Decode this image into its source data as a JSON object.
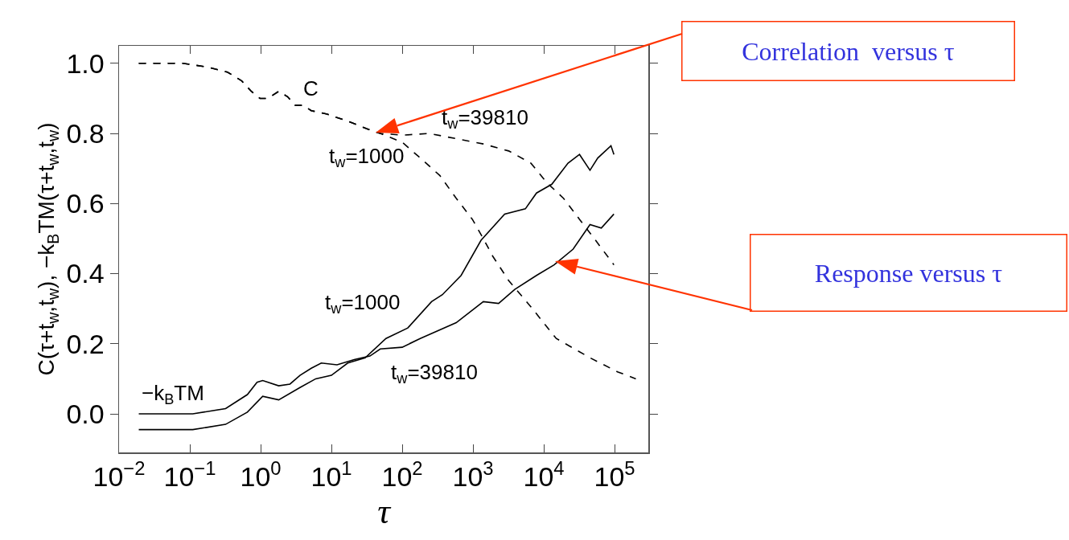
{
  "chart_data": {
    "type": "line",
    "xlabel": "τ",
    "ylabel": "C(τ+t$_{w}$,t$_{w}$), −k$_{B}$TM(τ+t$_{w}$,t$_{w}$)",
    "log": "x",
    "grid": false,
    "marker": "none",
    "xlim": [
      0.01,
      300000
    ],
    "ylim": [
      -0.11,
      1.05
    ],
    "xticks": [
      {
        "value": 0.01,
        "label": "10$^{−2}$"
      },
      {
        "value": 0.1,
        "label": "10$^{−1}$"
      },
      {
        "value": 1,
        "label": "10$^{0}$"
      },
      {
        "value": 10,
        "label": "10$^{1}$"
      },
      {
        "value": 100,
        "label": "10$^{2}$"
      },
      {
        "value": 1000,
        "label": "10$^{3}$"
      },
      {
        "value": 10000,
        "label": "10$^{4}$"
      },
      {
        "value": 100000,
        "label": "10$^{5}$"
      }
    ],
    "yticks": [
      {
        "value": 0,
        "label": "0.0"
      },
      {
        "value": 0.2,
        "label": "0.2"
      },
      {
        "value": 0.4,
        "label": "0.4"
      },
      {
        "value": 0.6,
        "label": "0.6"
      },
      {
        "value": 0.8,
        "label": "0.8"
      },
      {
        "value": 1,
        "label": "1.0"
      }
    ],
    "series": [
      {
        "color": "#000000",
        "line_style": "dashed",
        "x": [
          0.019,
          0.079,
          0.17,
          0.34,
          0.54,
          0.74,
          0.98,
          1.26,
          1.8,
          2.4,
          3.1,
          4.0,
          5.2,
          8.7,
          17,
          35,
          49,
          100,
          180,
          340,
          580,
          980,
          1400,
          1900,
          3200,
          6600,
          15000,
          45000,
          110000,
          200000
        ],
        "values": [
          1.0,
          1.0,
          0.99,
          0.975,
          0.95,
          0.92,
          0.9,
          0.9,
          0.92,
          0.905,
          0.88,
          0.88,
          0.865,
          0.855,
          0.835,
          0.81,
          0.8,
          0.775,
          0.73,
          0.68,
          0.615,
          0.555,
          0.5,
          0.45,
          0.38,
          0.305,
          0.215,
          0.16,
          0.12,
          0.1
        ]
      },
      {
        "color": "#000000",
        "line_style": "dashed",
        "x": [
          0.019,
          0.079,
          0.17,
          0.34,
          0.54,
          0.74,
          0.98,
          1.26,
          1.8,
          2.4,
          3.1,
          4.0,
          5.2,
          8.7,
          17,
          35,
          49,
          100,
          240,
          580,
          1400,
          3200,
          6600,
          11000,
          19000,
          32000,
          54000,
          98000
        ],
        "values": [
          1.0,
          1.0,
          0.99,
          0.975,
          0.95,
          0.92,
          0.9,
          0.9,
          0.92,
          0.905,
          0.88,
          0.88,
          0.865,
          0.855,
          0.835,
          0.81,
          0.8,
          0.795,
          0.8,
          0.785,
          0.77,
          0.75,
          0.715,
          0.66,
          0.615,
          0.555,
          0.495,
          0.425
        ]
      },
      {
        "color": "#000000",
        "line_style": "solid",
        "x": [
          0.019,
          0.11,
          0.32,
          0.65,
          0.89,
          1.07,
          1.8,
          2.6,
          3.6,
          5.2,
          7.2,
          12,
          21,
          35,
          49,
          100,
          180,
          580,
          1400,
          2300,
          3900,
          7900,
          14000,
          26000,
          45000,
          65000,
          98000
        ],
        "values": [
          0.0,
          0.0,
          0.015,
          0.055,
          0.09,
          0.095,
          0.08,
          0.085,
          0.11,
          0.13,
          0.145,
          0.14,
          0.155,
          0.165,
          0.185,
          0.19,
          0.215,
          0.26,
          0.32,
          0.315,
          0.355,
          0.395,
          0.425,
          0.47,
          0.54,
          0.53,
          0.57
        ]
      },
      {
        "color": "#000000",
        "line_style": "solid",
        "x": [
          0.019,
          0.11,
          0.32,
          0.65,
          1.07,
          1.8,
          3.6,
          6.0,
          10,
          17,
          30,
          59,
          120,
          260,
          370,
          680,
          1300,
          2800,
          5500,
          7900,
          13000,
          22000,
          32000,
          45000,
          58000,
          89000,
          98000
        ],
        "values": [
          -0.045,
          -0.045,
          -0.03,
          0.005,
          0.05,
          0.04,
          0.075,
          0.1,
          0.11,
          0.145,
          0.16,
          0.215,
          0.245,
          0.32,
          0.34,
          0.395,
          0.495,
          0.57,
          0.585,
          0.63,
          0.655,
          0.715,
          0.74,
          0.695,
          0.73,
          0.765,
          0.74
        ]
      }
    ],
    "annotations": [
      "C",
      "t$_{w}$=39810",
      "t$_{w}$=1000",
      "t$_{w}$=1000",
      "t$_{w}$=39810",
      "−k$_{B}$TM",
      "Correlation  versus τ",
      "Response versus τ"
    ]
  }
}
